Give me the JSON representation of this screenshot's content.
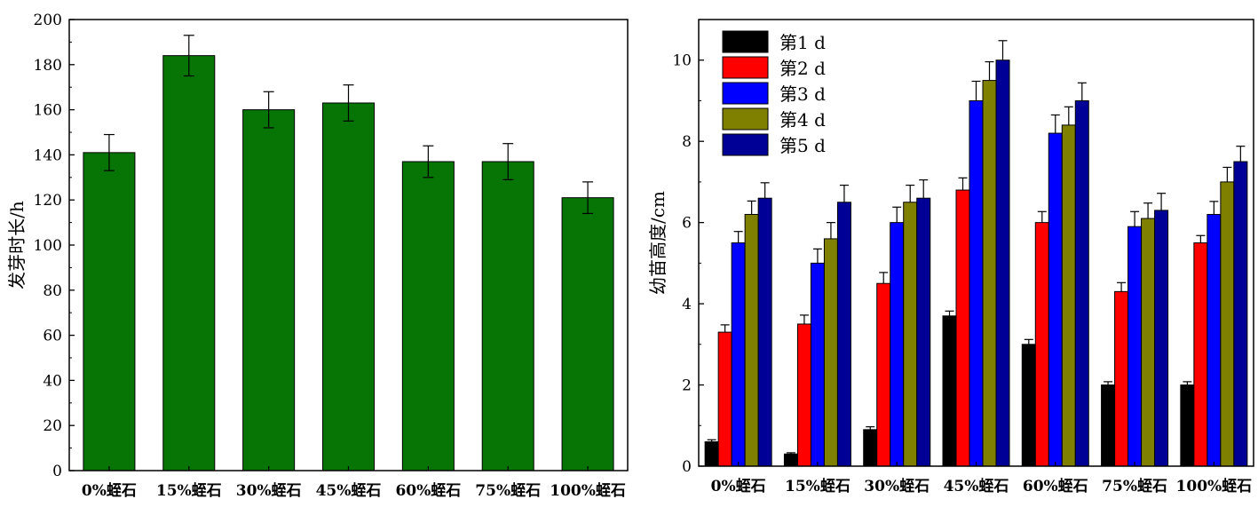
{
  "chart_data": [
    {
      "type": "bar",
      "title": "",
      "xlabel": "",
      "ylabel": "发芽时长/h",
      "ylim": [
        0,
        200
      ],
      "yticks": [
        "0",
        "20",
        "40",
        "60",
        "80",
        "100",
        "120",
        "140",
        "160",
        "180",
        "200"
      ],
      "categories": [
        "0%蛭石",
        "15%蛭石",
        "30%蛭石",
        "45%蛭石",
        "60%蛭石",
        "75%蛭石",
        "100%蛭石"
      ],
      "values": [
        141,
        184,
        160,
        163,
        137,
        137,
        121
      ],
      "errors": [
        8,
        9,
        8,
        8,
        7,
        8,
        7
      ],
      "color": "#067506",
      "grid": false
    },
    {
      "type": "bar",
      "title": "",
      "xlabel": "",
      "ylabel": "幼苗高度/cm",
      "ylim": [
        0,
        11
      ],
      "yticks": [
        "0",
        "2",
        "4",
        "6",
        "8",
        "10"
      ],
      "categories": [
        "0%蛭石",
        "15%蛭石",
        "30%蛭石",
        "45%蛭石",
        "60%蛭石",
        "75%蛭石",
        "100%蛭石"
      ],
      "legend_position": "top-left",
      "grid": false,
      "series": [
        {
          "name": "第1 d",
          "color": "#000000",
          "values": [
            0.6,
            0.3,
            0.9,
            3.7,
            3.0,
            2.0,
            2.0
          ],
          "errors": [
            0.05,
            0.03,
            0.07,
            0.12,
            0.12,
            0.08,
            0.08
          ]
        },
        {
          "name": "第2 d",
          "color": "#ff0000",
          "values": [
            3.3,
            3.5,
            4.5,
            6.8,
            6.0,
            4.3,
            5.5
          ],
          "errors": [
            0.18,
            0.22,
            0.27,
            0.3,
            0.27,
            0.22,
            0.18
          ]
        },
        {
          "name": "第3 d",
          "color": "#0000ff",
          "values": [
            5.5,
            5.0,
            6.0,
            9.0,
            8.2,
            5.9,
            6.2
          ],
          "errors": [
            0.28,
            0.35,
            0.38,
            0.48,
            0.45,
            0.37,
            0.32
          ]
        },
        {
          "name": "第4 d",
          "color": "#808000",
          "values": [
            6.2,
            5.6,
            6.5,
            9.5,
            8.4,
            6.1,
            7.0
          ],
          "errors": [
            0.33,
            0.4,
            0.42,
            0.46,
            0.45,
            0.38,
            0.36
          ]
        },
        {
          "name": "第5 d",
          "color": "#000096",
          "values": [
            6.6,
            6.5,
            6.6,
            10.0,
            9.0,
            6.3,
            7.5
          ],
          "errors": [
            0.38,
            0.42,
            0.45,
            0.48,
            0.44,
            0.42,
            0.38
          ]
        }
      ]
    }
  ]
}
